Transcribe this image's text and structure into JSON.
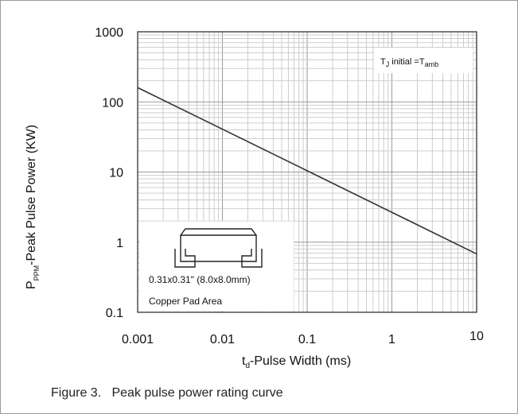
{
  "caption": "Figure 3.   Peak pulse power rating curve",
  "chart_data": {
    "type": "line",
    "x_scale": "log",
    "y_scale": "log",
    "xlim": [
      0.001,
      10
    ],
    "ylim": [
      0.1,
      1000
    ],
    "x_ticks": [
      0.001,
      0.01,
      0.1,
      1,
      10
    ],
    "x_tick_labels": [
      "0.001",
      "0.01",
      "0.1",
      "1",
      "10"
    ],
    "y_ticks": [
      0.1,
      1,
      10,
      100,
      1000
    ],
    "y_tick_labels": [
      "0.1",
      "1",
      "10",
      "100",
      "1000"
    ],
    "grid": true,
    "xlabel": {
      "main": "t",
      "sub": "d",
      "rest": "-Pulse Width (ms)"
    },
    "ylabel": {
      "main": "P",
      "sub": "PPM",
      "rest": "-Peak Pulse Power (KW)"
    },
    "series": [
      {
        "x": [
          0.001,
          10
        ],
        "y": [
          160,
          0.68
        ],
        "color": "#333333"
      }
    ],
    "annotation": {
      "pre": "T",
      "sub1": "J",
      "mid": " initial =T",
      "sub2": "amb"
    },
    "inset": {
      "line1": "0.31x0.31\" (8.0x8.0mm)",
      "line2": "Copper Pad Area"
    }
  }
}
